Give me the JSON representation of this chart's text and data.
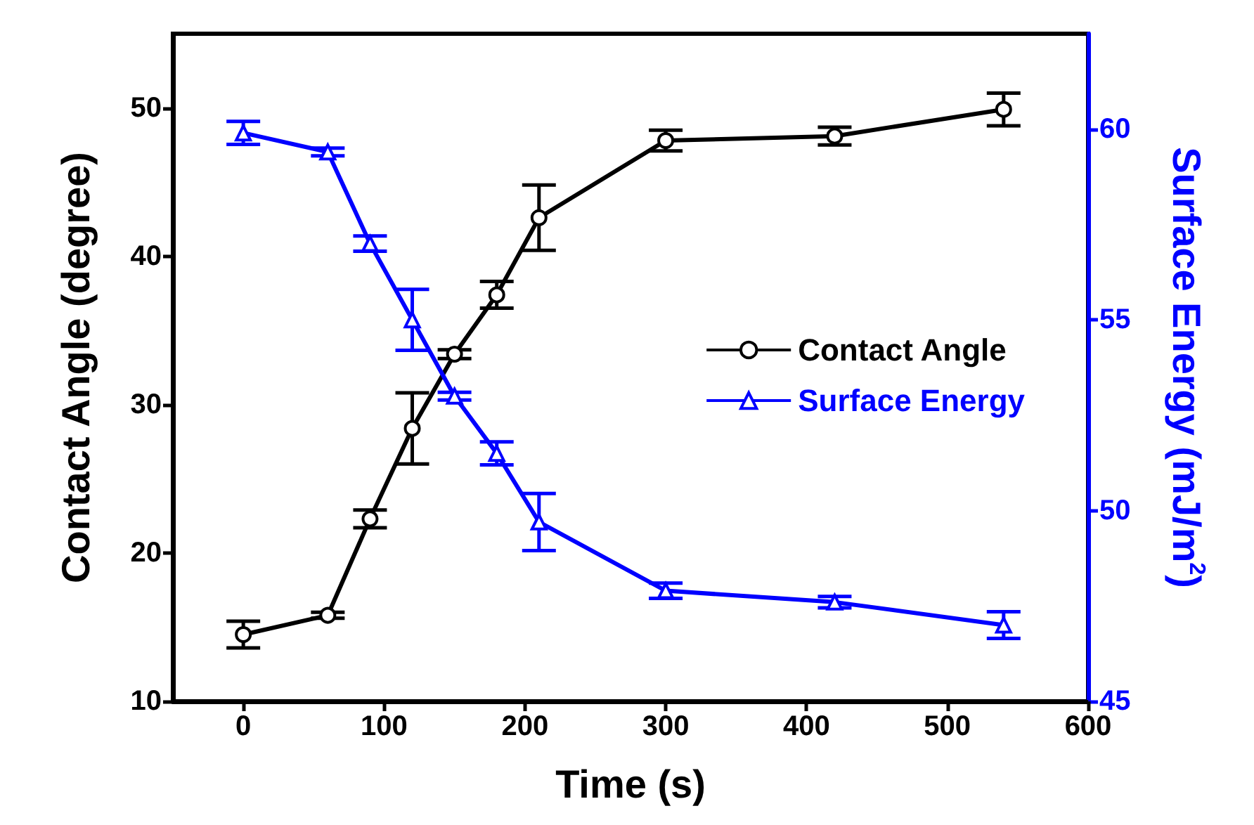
{
  "chart_data": {
    "type": "line",
    "xlabel": "Time (s)",
    "ylabel": "Contact Angle (degree)",
    "y2label": "Surface Energy (mJ/m$^{2}$)",
    "x": [
      0,
      60,
      90,
      120,
      150,
      180,
      210,
      300,
      420,
      540
    ],
    "series": [
      {
        "name": "Contact Angle",
        "color": "#000000",
        "marker": "circle",
        "values": [
          14.5,
          15.8,
          22.3,
          28.4,
          33.4,
          37.4,
          42.6,
          47.8,
          48.1,
          49.9
        ],
        "errors": [
          0.9,
          0.2,
          0.6,
          2.4,
          0.3,
          0.9,
          2.2,
          0.7,
          0.6,
          1.1
        ]
      },
      {
        "name": "Surface Energy",
        "color": "#0000ff",
        "marker": "triangle",
        "axis": "y2",
        "values": [
          59.9,
          59.4,
          57.0,
          55.0,
          53.0,
          51.5,
          49.7,
          47.9,
          47.6,
          47.0
        ],
        "errors": [
          0.3,
          0.1,
          0.2,
          0.8,
          0.1,
          0.3,
          0.75,
          0.2,
          0.15,
          0.35
        ]
      }
    ],
    "xlim": [
      -50,
      600
    ],
    "xticks": [
      0,
      100,
      200,
      300,
      400,
      500,
      600
    ],
    "ylim": [
      10,
      55
    ],
    "yticks": [
      10,
      20,
      30,
      40,
      50
    ],
    "y2lim": [
      45,
      62.5
    ],
    "y2ticks": [
      45,
      50,
      55,
      60
    ],
    "grid": false,
    "legend": "right",
    "line_style": "solid"
  }
}
